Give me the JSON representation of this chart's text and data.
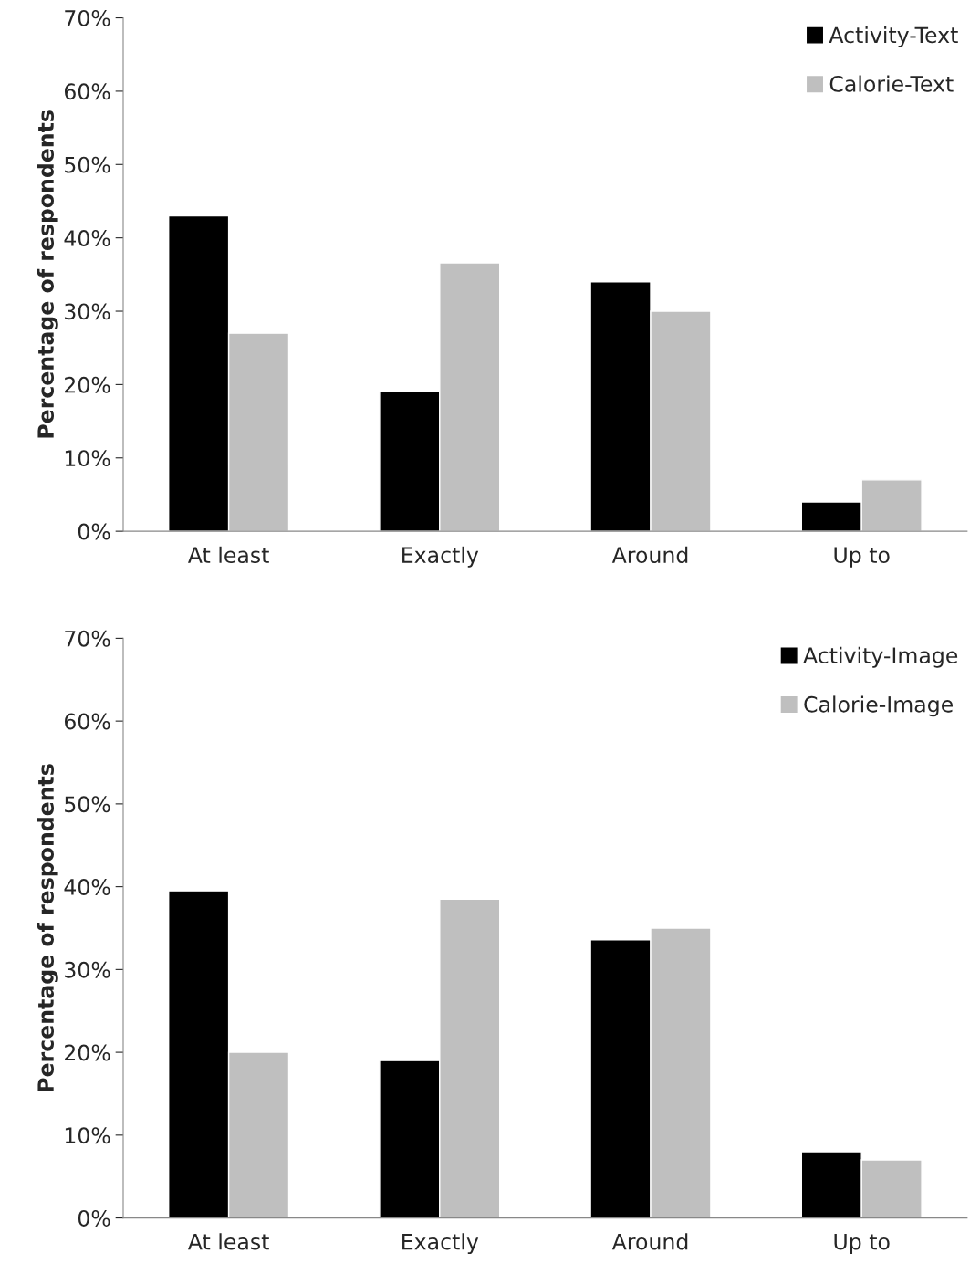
{
  "chart_data": [
    {
      "type": "bar",
      "ylabel": "Percentage of respondents",
      "categories": [
        "At least",
        "Exactly",
        "Around",
        "Up to"
      ],
      "series": [
        {
          "name": "Activity-Text",
          "color": "#000000",
          "values": [
            43,
            19,
            34,
            4
          ]
        },
        {
          "name": "Calorie-Text",
          "color": "#bfbfbf",
          "values": [
            27,
            36.6,
            30,
            7
          ]
        }
      ],
      "ylim": [
        0,
        70
      ],
      "yticks": [
        {
          "value": 0,
          "label": "0%"
        },
        {
          "value": 10,
          "label": "10%"
        },
        {
          "value": 20,
          "label": "20%"
        },
        {
          "value": 30,
          "label": "30%"
        },
        {
          "value": 40,
          "label": "40%"
        },
        {
          "value": 50,
          "label": "50%"
        },
        {
          "value": 60,
          "label": "60%"
        },
        {
          "value": 70,
          "label": "70%"
        }
      ],
      "grid": false,
      "legend": "top right"
    },
    {
      "type": "bar",
      "ylabel": "Percentage of respondents",
      "categories": [
        "At least",
        "Exactly",
        "Around",
        "Up to"
      ],
      "series": [
        {
          "name": "Activity-Image",
          "color": "#000000",
          "values": [
            39.5,
            19,
            33.6,
            8
          ]
        },
        {
          "name": "Calorie-Image",
          "color": "#bfbfbf",
          "values": [
            20,
            38.5,
            35,
            7
          ]
        }
      ],
      "ylim": [
        0,
        70
      ],
      "yticks": [
        {
          "value": 0,
          "label": "0%"
        },
        {
          "value": 10,
          "label": "10%"
        },
        {
          "value": 20,
          "label": "20%"
        },
        {
          "value": 30,
          "label": "30%"
        },
        {
          "value": 40,
          "label": "40%"
        },
        {
          "value": 50,
          "label": "50%"
        },
        {
          "value": 60,
          "label": "60%"
        },
        {
          "value": 70,
          "label": "70%"
        }
      ],
      "grid": false,
      "legend": "top right"
    }
  ]
}
